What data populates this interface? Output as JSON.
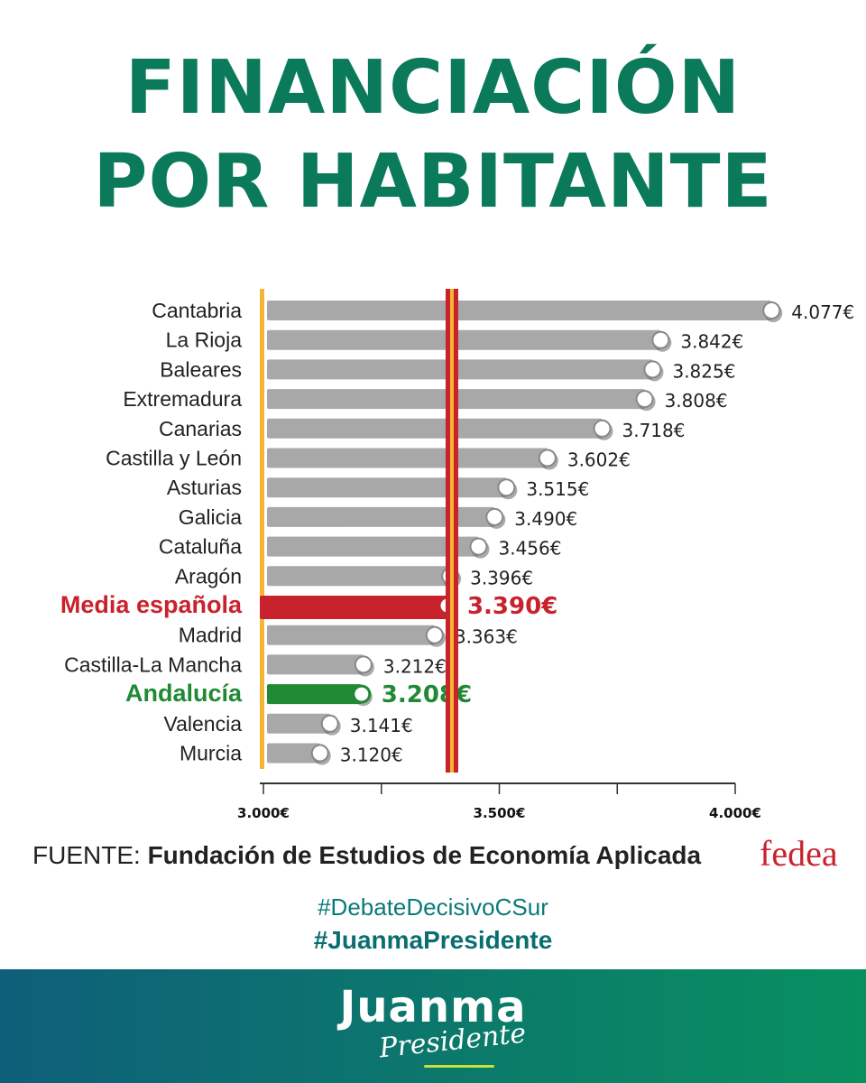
{
  "header": {
    "title_line1": "FINANCIACIÓN",
    "title_line2": "POR HABITANTE"
  },
  "chart_data": {
    "type": "bar",
    "orientation": "horizontal",
    "xlim": [
      3000,
      4000
    ],
    "x_ticks": [
      "3.000€",
      "3.500€",
      "4.000€"
    ],
    "x_tick_values": [
      3000,
      3500,
      4000
    ],
    "categories": [
      "Cantabria",
      "La Rioja",
      "Baleares",
      "Extremadura",
      "Canarias",
      "Castilla y León",
      "Asturias",
      "Galicia",
      "Cataluña",
      "Aragón",
      "Media española",
      "Madrid",
      "Castilla-La Mancha",
      "Andalucía",
      "Valencia",
      "Murcia"
    ],
    "values": [
      4077,
      3842,
      3825,
      3808,
      3718,
      3602,
      3515,
      3490,
      3456,
      3396,
      3390,
      3363,
      3212,
      3208,
      3141,
      3120
    ],
    "value_labels": [
      "4.077€",
      "3.842€",
      "3.825€",
      "3.808€",
      "3.718€",
      "3.602€",
      "3.515€",
      "3.490€",
      "3.456€",
      "3.396€",
      "3.390€",
      "3.363€",
      "3.212€",
      "3.208€",
      "3.141€",
      "3.120€"
    ],
    "highlighted": {
      "Media española": "#c8232c",
      "Andalucía": "#1f8a33"
    },
    "bar_color": "#a8a8a8",
    "reference_line_value": 3390
  },
  "source": {
    "prefix": "FUENTE:",
    "name": "Fundación de Estudios de Economía Aplicada",
    "logo_text": "fedea"
  },
  "hashtags": {
    "tag1": "#DebateDecisivoCSur",
    "tag2": "#JuanmaPresidente"
  },
  "footer": {
    "brand": "Juanma",
    "brand_sub": "Presidente"
  },
  "colors": {
    "title": "#0a7a5a",
    "highlight_red": "#c8232c",
    "highlight_green": "#1f8a33",
    "axis_yellow": "#f2b632",
    "footer_start": "#0e5f7a",
    "footer_end": "#089060"
  }
}
